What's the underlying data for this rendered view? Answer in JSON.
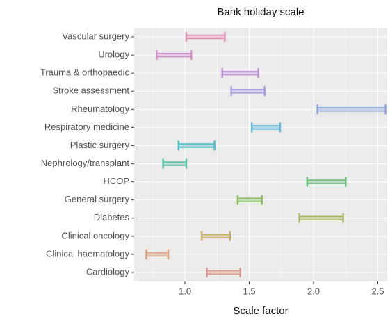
{
  "chart_data": {
    "type": "range",
    "title": "Bank holiday scale",
    "x_label": "Scale factor",
    "categories": [
      "Vascular surgery",
      "Urology",
      "Trauma & orthopaedic",
      "Stroke assessment",
      "Rheumatology",
      "Respiratory medicine",
      "Plastic surgery",
      "Nephrology/transplant",
      "HCOP",
      "General surgery",
      "Diabetes",
      "Clinical oncology",
      "Clinical haematology",
      "Cardiology"
    ],
    "low": [
      1.01,
      0.78,
      1.29,
      1.36,
      2.03,
      1.52,
      0.95,
      0.83,
      1.95,
      1.41,
      1.89,
      1.13,
      0.7,
      1.17
    ],
    "high": [
      1.31,
      1.05,
      1.57,
      1.62,
      2.56,
      1.74,
      1.23,
      1.01,
      2.25,
      1.6,
      2.23,
      1.35,
      0.87,
      1.43
    ],
    "colors": [
      "#e08fb4",
      "#d68fcb",
      "#c293d8",
      "#a79ce0",
      "#8ea9dc",
      "#5eb6d8",
      "#4cbcc4",
      "#55bfa2",
      "#6cbe7c",
      "#8dbd60",
      "#a8b66a",
      "#c6aa6a",
      "#d9a07a",
      "#df988c"
    ],
    "xlim": [
      0.605,
      2.573
    ],
    "xticks": [
      {
        "value": 1,
        "label": "1.0"
      },
      1.5,
      {
        "value": 2,
        "label": "2.0"
      },
      2.5
    ],
    "grid": true
  }
}
